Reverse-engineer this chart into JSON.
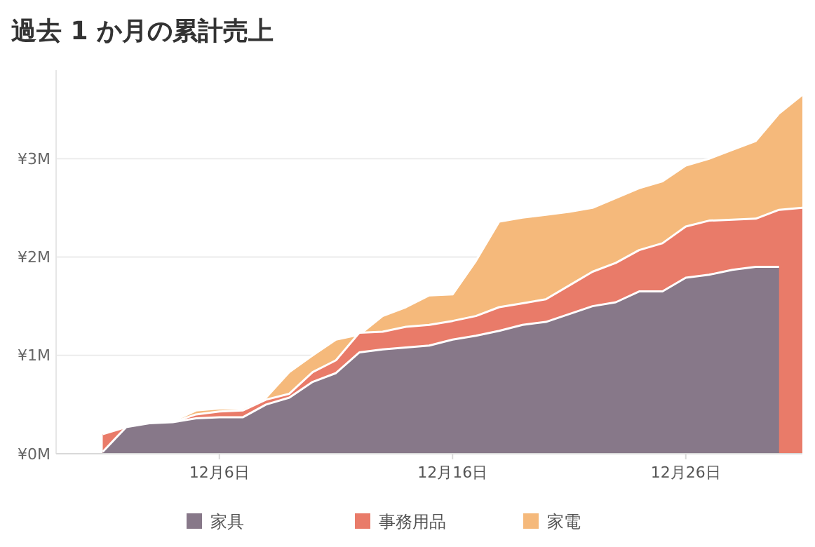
{
  "chart_data": {
    "type": "area",
    "title": "過去 1 か月の累計売上",
    "x": [
      "--12-01",
      "--12-02",
      "--12-03",
      "--12-04",
      "--12-05",
      "--12-06",
      "--12-07",
      "--12-08",
      "--12-09",
      "--12-10",
      "--12-11",
      "--12-12",
      "--12-13",
      "--12-14",
      "--12-15",
      "--12-16",
      "--12-17",
      "--12-18",
      "--12-19",
      "--12-20",
      "--12-21",
      "--12-22",
      "--12-23",
      "--12-24",
      "--12-25",
      "--12-26",
      "--12-27",
      "--12-28",
      "--12-29",
      "--12-30",
      "--12-31"
    ],
    "series": [
      {
        "name": "家電",
        "color": "#f5b97b",
        "values": [
          null,
          null,
          null,
          0.33,
          0.44,
          0.46,
          0.46,
          0.57,
          0.83,
          1.0,
          1.16,
          1.21,
          1.4,
          1.49,
          1.61,
          1.62,
          1.96,
          2.36,
          2.4,
          2.43,
          2.46,
          2.5,
          2.6,
          2.7,
          2.77,
          2.93,
          3.0,
          3.09,
          3.18,
          3.46,
          3.65
        ]
      },
      {
        "name": "事務用品",
        "color": "#e97b69",
        "values": [
          0.2,
          0.27,
          0.31,
          0.32,
          0.4,
          0.43,
          0.44,
          0.55,
          0.61,
          0.83,
          0.95,
          1.23,
          1.24,
          1.29,
          1.31,
          1.35,
          1.4,
          1.49,
          1.53,
          1.57,
          1.71,
          1.85,
          1.94,
          2.07,
          2.14,
          2.31,
          2.37,
          2.38,
          2.39,
          2.48,
          2.5
        ]
      },
      {
        "name": "家具",
        "color": "#877889",
        "values": [
          0.02,
          0.27,
          0.31,
          0.32,
          0.36,
          0.37,
          0.37,
          0.5,
          0.57,
          0.73,
          0.82,
          1.03,
          1.06,
          1.08,
          1.1,
          1.16,
          1.2,
          1.25,
          1.31,
          1.34,
          1.42,
          1.5,
          1.54,
          1.65,
          1.65,
          1.79,
          1.82,
          1.87,
          1.9,
          1.9,
          null
        ]
      }
    ],
    "xlim": [
      "--11-29",
      "--12-31"
    ],
    "xticks": [
      {
        "value": "--12-06",
        "label": "12月6日"
      },
      {
        "value": "--12-16",
        "label": "12月16日"
      },
      {
        "value": "--12-26",
        "label": "12月26日"
      }
    ],
    "ylim": [
      0,
      3.9
    ],
    "yticks": [
      {
        "value": 0,
        "label": "¥0M"
      },
      {
        "value": 1,
        "label": "¥1M"
      },
      {
        "value": 2,
        "label": "¥2M"
      },
      {
        "value": 3,
        "label": "¥3M"
      }
    ],
    "grid": "y",
    "legend": "bottom"
  }
}
